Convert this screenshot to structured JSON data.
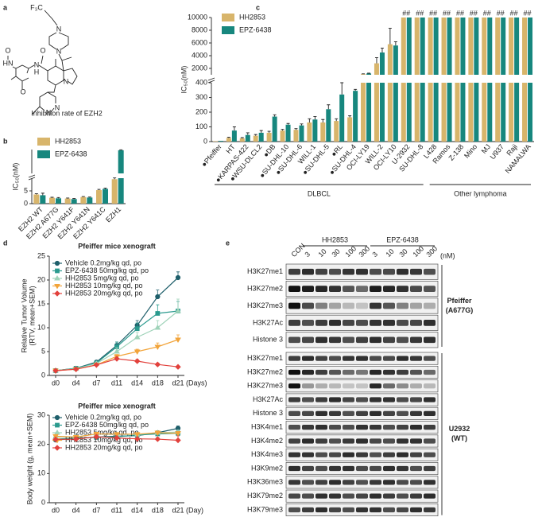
{
  "panels": [
    "a",
    "b",
    "c",
    "d",
    "e"
  ],
  "structure": {
    "atoms": [
      "F₃C",
      "N",
      "N",
      "N",
      "N",
      "N",
      "HN",
      "O",
      "O",
      "N",
      "H",
      "O"
    ],
    "caption": "Inhibition rate of EZH2"
  },
  "chart_data": [
    {
      "type": "bar",
      "ylabel": "IC₅₀(nM)",
      "categories": [
        "EZH2 WT",
        "EZH2 A677G",
        "EZH2 Y641F",
        "EZH2 Y641N",
        "EZH2 Y641C",
        "EZH1"
      ],
      "series": [
        {
          "name": "HH2853",
          "color": "#d8b56b",
          "values": [
            3.6,
            2.3,
            2.0,
            2.6,
            5.3,
            9.6
          ],
          "errors": [
            0.3,
            0.2,
            0.2,
            0.2,
            0.3,
            0.5
          ]
        },
        {
          "name": "EPZ-6438",
          "color": "#17877e",
          "values": [
            3.3,
            2.1,
            1.8,
            2.4,
            5.8,
            58.5
          ],
          "errors": [
            0.8,
            0.3,
            0.2,
            0.2,
            0.3,
            1
          ]
        }
      ],
      "y_segments": [
        {
          "ylim": [
            0,
            10
          ],
          "yticks": [
            0,
            5
          ]
        },
        {
          "ylim": [
            10,
            60
          ]
        }
      ]
    },
    {
      "type": "bar",
      "ylabel": "IC₅₀(nM)",
      "categories": [
        "●Pfeiffer",
        "HT",
        "●KARPAS-422",
        "●WSU-DLCL2",
        "●DB",
        "●SU-DHL-10",
        "●SU-DHL-6",
        "WILL-1",
        "●SU-DHL-5",
        "●RL",
        "●SU-DHL-4",
        "OCI-LY19",
        "WILL-2",
        "OCI-LY10",
        "U-2932",
        "SU-DHL-8",
        "L428",
        "Ramos",
        "Z-138",
        "Mino",
        "MJ",
        "U937",
        "Raji",
        "NAMALWA"
      ],
      "series": [
        {
          "name": "HH2853",
          "color": "#d8b56b",
          "values": [
            3,
            25,
            22,
            40,
            60,
            75,
            80,
            130,
            130,
            140,
            165,
            1100,
            2800,
            5800,
            10000,
            10000,
            10000,
            10000,
            10000,
            10000,
            10000,
            10000,
            10000,
            10000
          ],
          "errors": [
            0,
            5,
            5,
            8,
            10,
            8,
            8,
            25,
            20,
            15,
            10,
            50,
            900,
            2500,
            0,
            0,
            0,
            0,
            0,
            0,
            0,
            0,
            0,
            0
          ]
        },
        {
          "name": "EPZ-6438",
          "color": "#17877e",
          "values": [
            5,
            75,
            45,
            60,
            170,
            115,
            110,
            150,
            220,
            320,
            345,
            1200,
            4500,
            5600,
            10000,
            10000,
            10000,
            10000,
            10000,
            10000,
            10000,
            10000,
            10000,
            10000
          ],
          "errors": [
            0,
            25,
            15,
            15,
            12,
            8,
            10,
            20,
            30,
            80,
            10,
            50,
            700,
            600,
            0,
            0,
            0,
            0,
            0,
            0,
            0,
            0,
            0,
            0
          ]
        }
      ],
      "flags": [
        null,
        null,
        null,
        null,
        null,
        null,
        null,
        null,
        null,
        null,
        null,
        null,
        null,
        null,
        "##",
        "##",
        "##",
        "##",
        "##",
        "##",
        "##",
        "##",
        "##",
        "##"
      ],
      "y_segments": [
        {
          "ylim": [
            0,
            400
          ],
          "yticks": [
            0,
            100,
            200,
            300,
            400
          ]
        },
        {
          "ylim": [
            1000,
            10000
          ],
          "yticks": [
            2000,
            4000,
            6000,
            8000,
            10000
          ]
        }
      ],
      "groups": [
        {
          "label": "DLBCL",
          "count": 16
        },
        {
          "label": "Other lymphoma",
          "count": 8
        }
      ]
    },
    {
      "type": "line",
      "title": "Pfeiffer mice xenograft",
      "ylabel": [
        "Relative Tumor Volume",
        "(RTV, mean+SEM)"
      ],
      "x_unit": "(Days)",
      "categories": [
        "d0",
        "d4",
        "d7",
        "d11",
        "d14",
        "d18",
        "d21"
      ],
      "ylim": [
        0,
        25
      ],
      "yticks": [
        0,
        5,
        10,
        15,
        20,
        25
      ],
      "series": [
        {
          "name": "Vehicle 0.2mg/kg qd, po",
          "color": "#1f5f6b",
          "marker": "circle",
          "values": [
            1,
            1.5,
            2.8,
            6.3,
            10.5,
            16.5,
            20.5
          ],
          "errors": [
            0,
            0.2,
            0.3,
            0.7,
            1.0,
            1.4,
            1.2
          ]
        },
        {
          "name": "EPZ-6438 50mg/kg qd, po",
          "color": "#2a9a8e",
          "marker": "square",
          "values": [
            1,
            1.5,
            2.6,
            6,
            9.8,
            13,
            13.5
          ],
          "errors": [
            0,
            0.2,
            0.3,
            1,
            1.2,
            1.8,
            2
          ]
        },
        {
          "name": "HH2853 5mg/kg qd, po",
          "color": "#9fd3b9",
          "marker": "triangle",
          "values": [
            1,
            1.4,
            2.5,
            5,
            8,
            10,
            13.5
          ],
          "errors": [
            0,
            0.2,
            0.3,
            0.8,
            1,
            1.5,
            2.5
          ]
        },
        {
          "name": "HH2853 10mg/kg qd, po",
          "color": "#f2a43a",
          "marker": "triangle-down",
          "values": [
            1,
            1.3,
            2.2,
            4,
            5,
            6,
            7.5
          ],
          "errors": [
            0,
            0.1,
            0.2,
            0.4,
            0.5,
            0.8,
            1
          ]
        },
        {
          "name": "HH2853 20mg/kg qd, po",
          "color": "#e2413c",
          "marker": "diamond",
          "values": [
            1,
            1.3,
            2.2,
            3.5,
            3,
            2.3,
            1.8
          ],
          "errors": [
            0,
            0.1,
            0.2,
            0.3,
            0.3,
            0.3,
            0.2
          ]
        }
      ]
    },
    {
      "type": "line",
      "title": "Pfeiffer mice xenograft",
      "ylabel": [
        "Body weight (g, mean+SEM)"
      ],
      "x_unit": "(Day)",
      "categories": [
        "d0",
        "d4",
        "d7",
        "d11",
        "d14",
        "d18",
        "d21"
      ],
      "ylim": [
        0,
        30
      ],
      "yticks": [
        0,
        10,
        20,
        30
      ],
      "series": [
        {
          "name": "Vehicle 0.2mg/kg qd, po",
          "color": "#1f5f6b",
          "marker": "circle",
          "values": [
            21.5,
            22,
            22.5,
            22.8,
            23,
            24,
            25.5
          ],
          "errors": [
            0.4,
            0.4,
            0.5,
            0.5,
            0.5,
            0.6,
            0.8
          ]
        },
        {
          "name": "EPZ-6438 50mg/kg qd, po",
          "color": "#2a9a8e",
          "marker": "square",
          "values": [
            21.8,
            22.2,
            22.4,
            22.6,
            23.2,
            23.6,
            23.8
          ],
          "errors": [
            0.4,
            0.4,
            0.5,
            0.5,
            0.5,
            0.6,
            0.6
          ]
        },
        {
          "name": "HH2853 5mg/kg qd, po",
          "color": "#9fd3b9",
          "marker": "triangle",
          "values": [
            22.5,
            22.6,
            23.5,
            23.4,
            23.4,
            24,
            24.2
          ],
          "errors": [
            0.4,
            0.4,
            0.5,
            0.5,
            0.5,
            0.6,
            0.6
          ]
        },
        {
          "name": "HH2853 10mg/kg qd, po",
          "color": "#f2a43a",
          "marker": "triangle-down",
          "values": [
            22.8,
            22.5,
            23.6,
            23.5,
            23.5,
            24,
            23.8
          ],
          "errors": [
            0.4,
            0.4,
            0.5,
            0.5,
            0.5,
            0.6,
            0.6
          ]
        },
        {
          "name": "HH2853 20mg/kg qd, po",
          "color": "#e2413c",
          "marker": "diamond",
          "values": [
            21.7,
            21.8,
            22.6,
            22.2,
            21.9,
            21.8,
            21.4
          ],
          "errors": [
            0.4,
            0.4,
            0.5,
            0.5,
            0.5,
            0.6,
            1.5
          ]
        }
      ]
    }
  ],
  "western_blot": {
    "concentration_unit": "(nM)",
    "lanes": [
      "CON",
      "3",
      "10",
      "30",
      "100",
      "300",
      "3",
      "10",
      "30",
      "100",
      "300"
    ],
    "treatments": [
      {
        "name": "HH2853",
        "lanes": 5
      },
      {
        "name": "EPZ-6438",
        "lanes": 5
      }
    ],
    "groups": [
      {
        "cell_line": "Pfeiffer",
        "mutation": "(A677G)",
        "rows": [
          "H3K27me1",
          "H3K27me2",
          "H3K27me3",
          "H3K27Ac",
          "Histone 3"
        ]
      },
      {
        "cell_line": "U2932",
        "mutation": "(WT)",
        "rows": [
          "H3K27me1",
          "H3K27me2",
          "H3K27me3",
          "H3K27Ac",
          "Histone 3",
          "H3K4me1",
          "H3K4me2",
          "H3K4me3",
          "H3K9me2",
          "H3K36me3",
          "H3K79me2",
          "H3K79me3"
        ]
      }
    ]
  }
}
